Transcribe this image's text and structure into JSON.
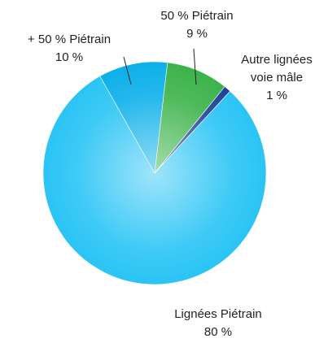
{
  "chart_data": {
    "type": "pie",
    "categories": [
      "50 % Piétrain",
      "Autre lignées voie mâle",
      "Lignées Piétrain",
      "+ 50 % Piétrain"
    ],
    "values": [
      9,
      1,
      80,
      10
    ],
    "value_labels": [
      "9 %",
      "1 %",
      "80 %",
      "10 %"
    ],
    "colors": [
      "#3cb34a",
      "#1f3f9a",
      "#2ac4f5",
      "#0cb0ea"
    ]
  }
}
